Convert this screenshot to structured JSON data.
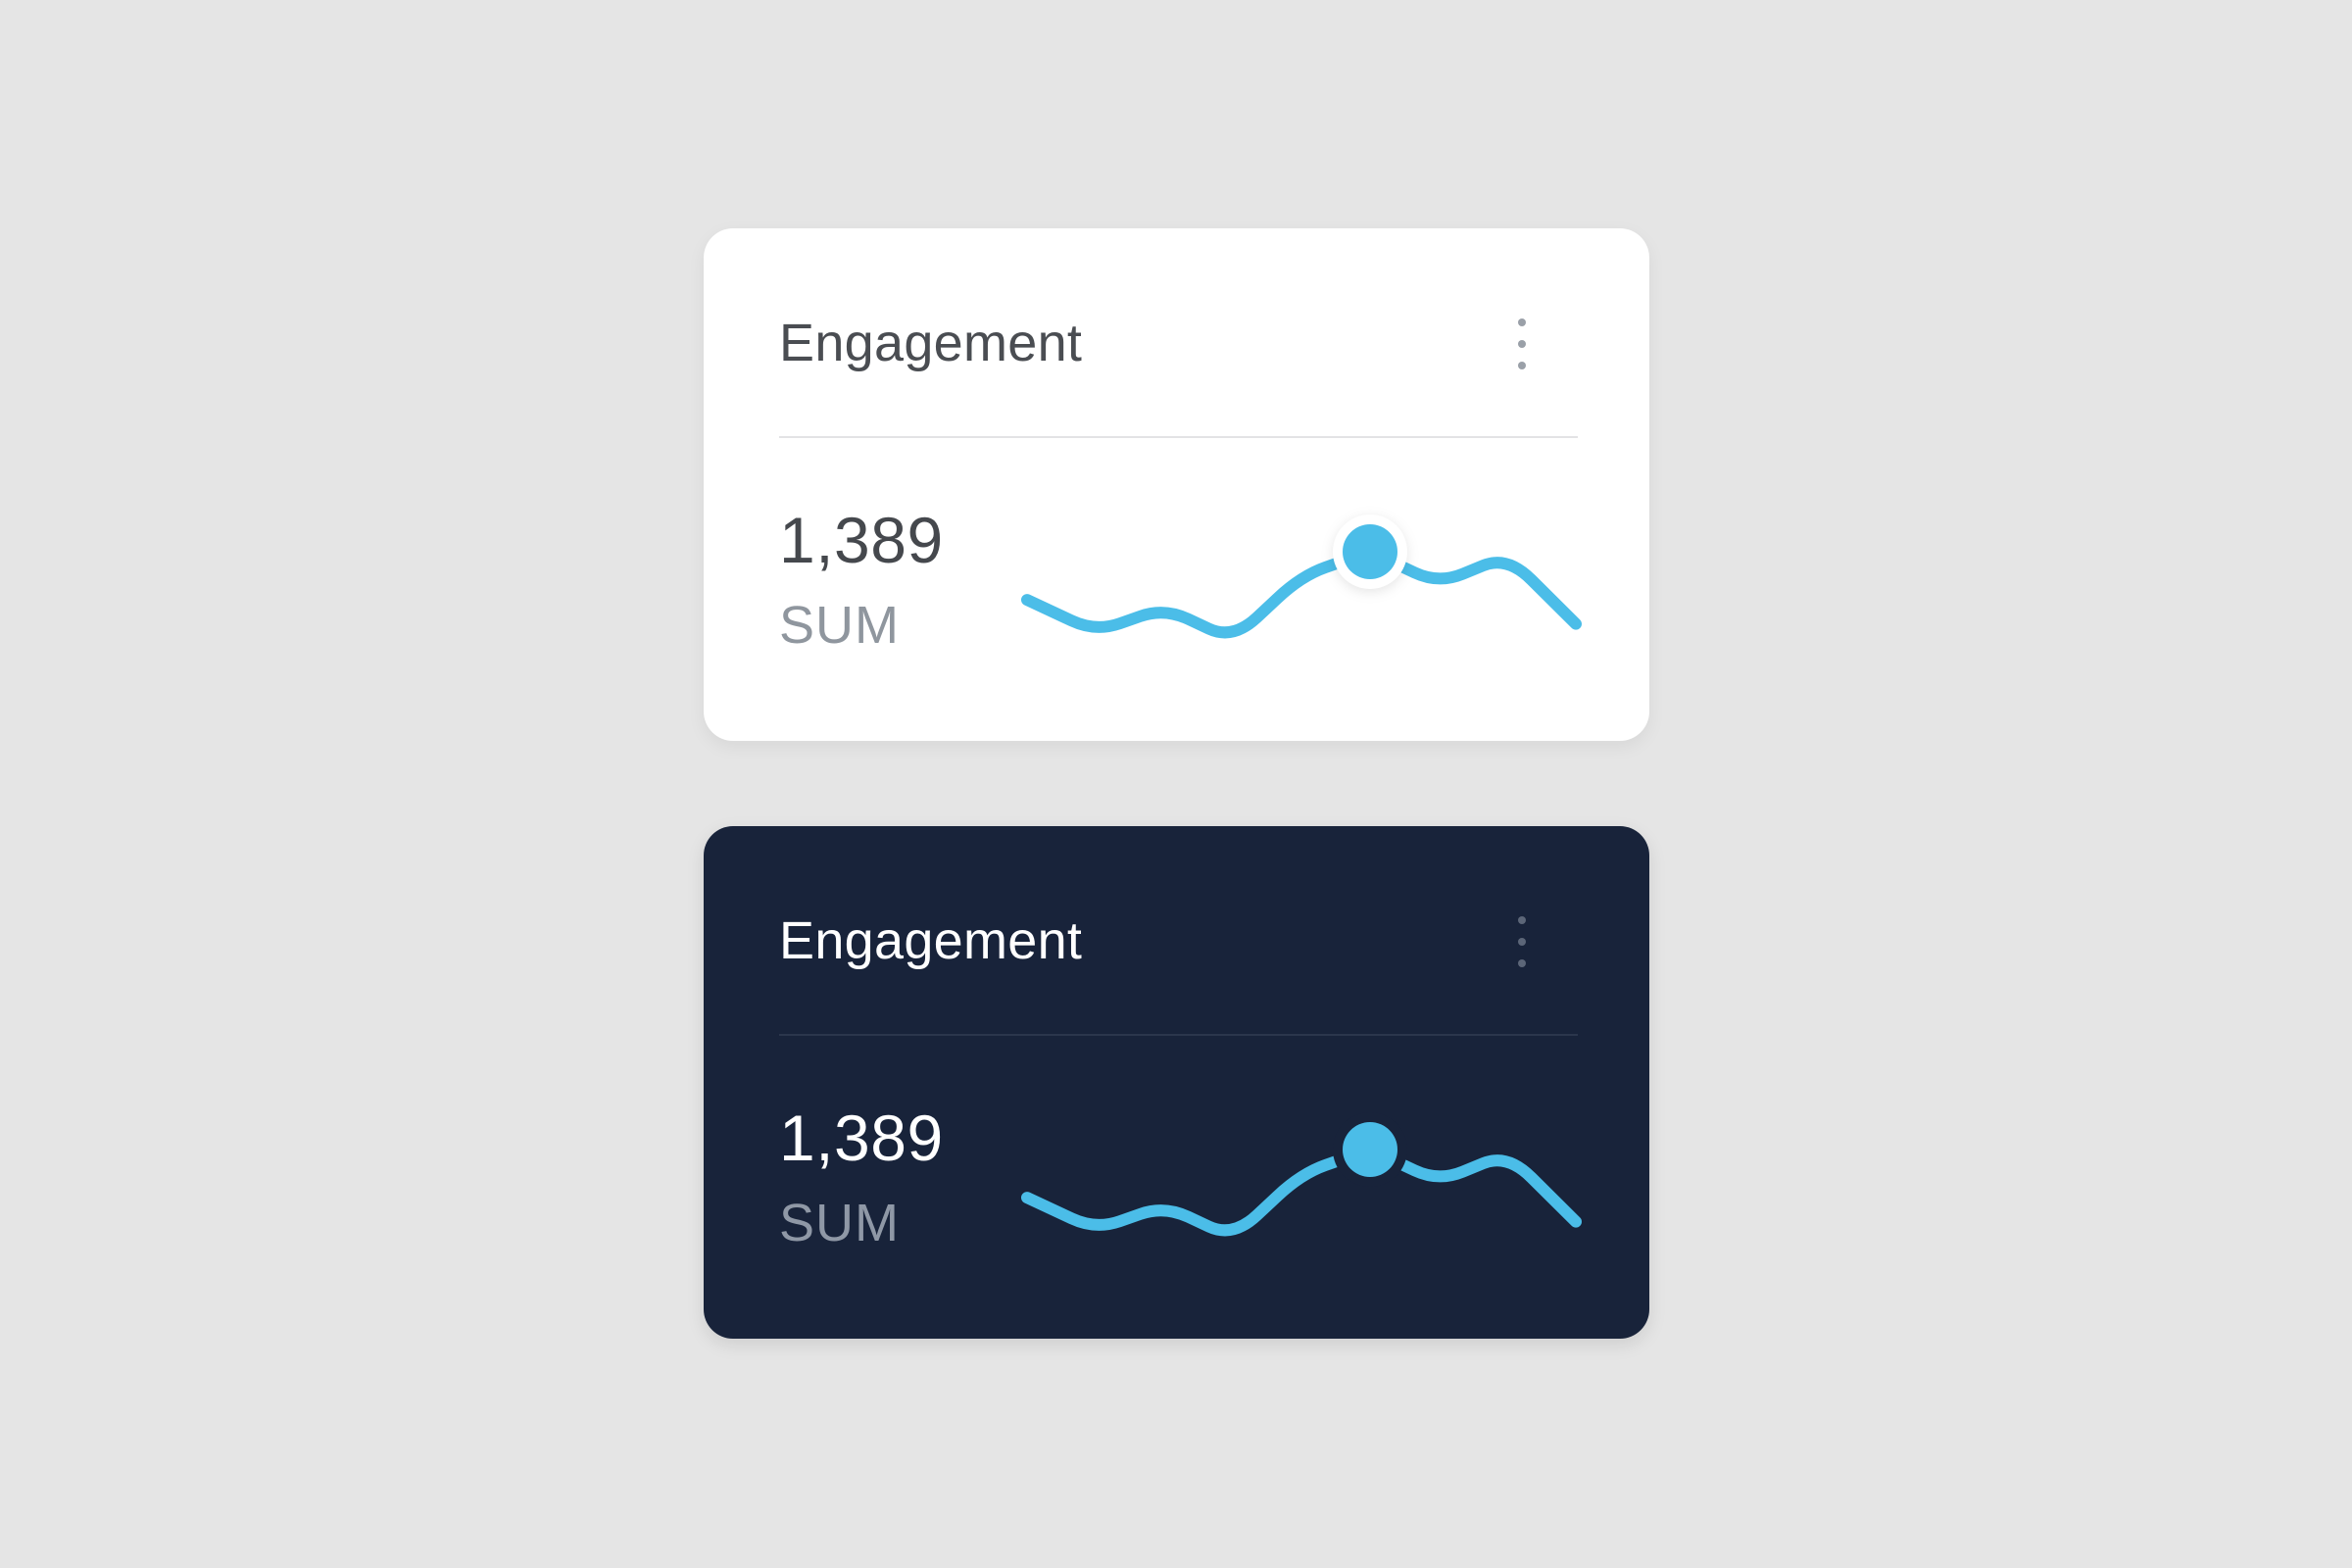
{
  "colors": {
    "background": "#e5e5e5",
    "accent": "#4bbde8",
    "light_card": "#ffffff",
    "dark_card": "#18233a"
  },
  "cards": [
    {
      "theme": "light",
      "title": "Engagement",
      "menu_icon": "vertical-dots-icon",
      "value": "1,389",
      "label": "SUM"
    },
    {
      "theme": "dark",
      "title": "Engagement",
      "menu_icon": "vertical-dots-icon",
      "value": "1,389",
      "label": "SUM"
    }
  ],
  "chart_data": [
    {
      "type": "line",
      "x": [
        0,
        1,
        2,
        3,
        4,
        5,
        6,
        7,
        8
      ],
      "series": [
        {
          "values": [
            0.4,
            0,
            0.3,
            -0.1,
            0.7,
            1,
            0.6,
            0.95,
            0.1
          ]
        }
      ],
      "highlight_index": 5,
      "grid": false
    },
    {
      "type": "line",
      "x": [
        0,
        1,
        2,
        3,
        4,
        5,
        6,
        7,
        8
      ],
      "series": [
        {
          "values": [
            0.4,
            0,
            0.3,
            -0.1,
            0.7,
            1,
            0.6,
            0.95,
            0.1
          ]
        }
      ],
      "highlight_index": 5,
      "grid": false
    }
  ]
}
